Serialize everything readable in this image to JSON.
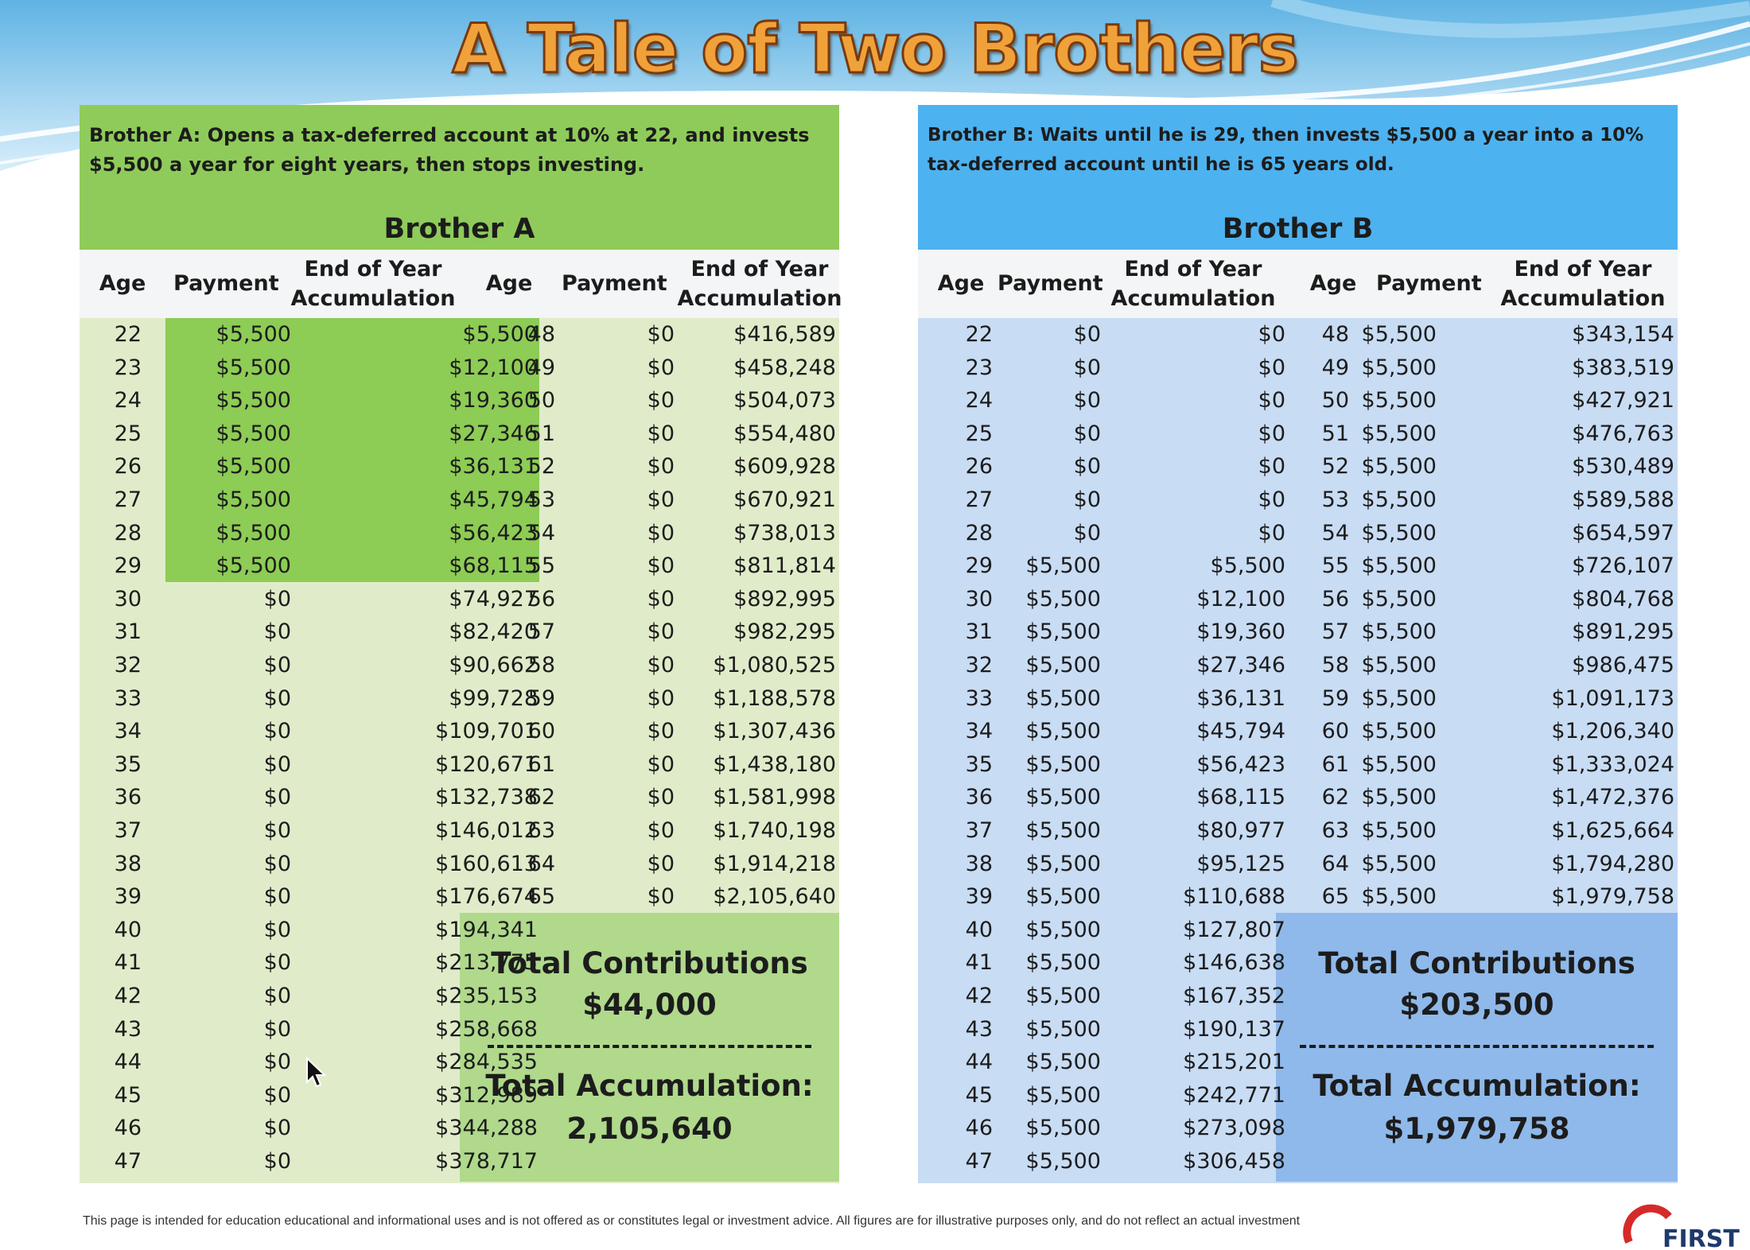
{
  "title": "A Tale of Two Brothers",
  "colors": {
    "green": "#8fcb5a",
    "green_light": "#e0ecc9",
    "blue": "#4db2f0",
    "blue_light": "#c8dcf4",
    "title": "#f0a13a"
  },
  "brother_a": {
    "description": "Brother A: Opens a tax-deferred account at 10% at 22, and invests $5,500 a year for eight years, then stops investing.",
    "title": "Brother A",
    "headers": {
      "age": "Age",
      "payment": "Payment",
      "eoy_line1": "End of Year",
      "eoy_line2": "Accumulation"
    },
    "left_rows": [
      [
        "22",
        "$5,500",
        "$5,500"
      ],
      [
        "23",
        "$5,500",
        "$12,100"
      ],
      [
        "24",
        "$5,500",
        "$19,360"
      ],
      [
        "25",
        "$5,500",
        "$27,346"
      ],
      [
        "26",
        "$5,500",
        "$36,131"
      ],
      [
        "27",
        "$5,500",
        "$45,794"
      ],
      [
        "28",
        "$5,500",
        "$56,423"
      ],
      [
        "29",
        "$5,500",
        "$68,115"
      ],
      [
        "30",
        "$0",
        "$74,927"
      ],
      [
        "31",
        "$0",
        "$82,420"
      ],
      [
        "32",
        "$0",
        "$90,662"
      ],
      [
        "33",
        "$0",
        "$99,728"
      ],
      [
        "34",
        "$0",
        "$109,701"
      ],
      [
        "35",
        "$0",
        "$120,671"
      ],
      [
        "36",
        "$0",
        "$132,738"
      ],
      [
        "37",
        "$0",
        "$146,012"
      ],
      [
        "38",
        "$0",
        "$160,613"
      ],
      [
        "39",
        "$0",
        "$176,674"
      ],
      [
        "40",
        "$0",
        "$194,341"
      ],
      [
        "41",
        "$0",
        "$213,775"
      ],
      [
        "42",
        "$0",
        "$235,153"
      ],
      [
        "43",
        "$0",
        "$258,668"
      ],
      [
        "44",
        "$0",
        "$284,535"
      ],
      [
        "45",
        "$0",
        "$312,989"
      ],
      [
        "46",
        "$0",
        "$344,288"
      ],
      [
        "47",
        "$0",
        "$378,717"
      ]
    ],
    "right_rows": [
      [
        "48",
        "$0",
        "$416,589"
      ],
      [
        "49",
        "$0",
        "$458,248"
      ],
      [
        "50",
        "$0",
        "$504,073"
      ],
      [
        "51",
        "$0",
        "$554,480"
      ],
      [
        "52",
        "$0",
        "$609,928"
      ],
      [
        "53",
        "$0",
        "$670,921"
      ],
      [
        "54",
        "$0",
        "$738,013"
      ],
      [
        "55",
        "$0",
        "$811,814"
      ],
      [
        "56",
        "$0",
        "$892,995"
      ],
      [
        "57",
        "$0",
        "$982,295"
      ],
      [
        "58",
        "$0",
        "$1,080,525"
      ],
      [
        "59",
        "$0",
        "$1,188,578"
      ],
      [
        "60",
        "$0",
        "$1,307,436"
      ],
      [
        "61",
        "$0",
        "$1,438,180"
      ],
      [
        "62",
        "$0",
        "$1,581,998"
      ],
      [
        "63",
        "$0",
        "$1,740,198"
      ],
      [
        "64",
        "$0",
        "$1,914,218"
      ],
      [
        "65",
        "$0",
        "$2,105,640"
      ]
    ],
    "totals": {
      "contrib_label": "Total Contributions",
      "contrib_value": "$44,000",
      "accum_label": "Total Accumulation:",
      "accum_value": "2,105,640"
    }
  },
  "brother_b": {
    "description": "Brother B: Waits until he is 29, then invests $5,500 a year into a 10% tax-deferred account until he is 65 years old.",
    "title": "Brother B",
    "headers": {
      "age": "Age",
      "payment": "Payment",
      "eoy_line1": "End of Year",
      "eoy_line2": "Accumulation"
    },
    "left_rows": [
      [
        "22",
        "$0",
        "$0"
      ],
      [
        "23",
        "$0",
        "$0"
      ],
      [
        "24",
        "$0",
        "$0"
      ],
      [
        "25",
        "$0",
        "$0"
      ],
      [
        "26",
        "$0",
        "$0"
      ],
      [
        "27",
        "$0",
        "$0"
      ],
      [
        "28",
        "$0",
        "$0"
      ],
      [
        "29",
        "$5,500",
        "$5,500"
      ],
      [
        "30",
        "$5,500",
        "$12,100"
      ],
      [
        "31",
        "$5,500",
        "$19,360"
      ],
      [
        "32",
        "$5,500",
        "$27,346"
      ],
      [
        "33",
        "$5,500",
        "$36,131"
      ],
      [
        "34",
        "$5,500",
        "$45,794"
      ],
      [
        "35",
        "$5,500",
        "$56,423"
      ],
      [
        "36",
        "$5,500",
        "$68,115"
      ],
      [
        "37",
        "$5,500",
        "$80,977"
      ],
      [
        "38",
        "$5,500",
        "$95,125"
      ],
      [
        "39",
        "$5,500",
        "$110,688"
      ],
      [
        "40",
        "$5,500",
        "$127,807"
      ],
      [
        "41",
        "$5,500",
        "$146,638"
      ],
      [
        "42",
        "$5,500",
        "$167,352"
      ],
      [
        "43",
        "$5,500",
        "$190,137"
      ],
      [
        "44",
        "$5,500",
        "$215,201"
      ],
      [
        "45",
        "$5,500",
        "$242,771"
      ],
      [
        "46",
        "$5,500",
        "$273,098"
      ],
      [
        "47",
        "$5,500",
        "$306,458"
      ]
    ],
    "right_rows": [
      [
        "48",
        "$5,500",
        "$343,154"
      ],
      [
        "49",
        "$5,500",
        "$383,519"
      ],
      [
        "50",
        "$5,500",
        "$427,921"
      ],
      [
        "51",
        "$5,500",
        "$476,763"
      ],
      [
        "52",
        "$5,500",
        "$530,489"
      ],
      [
        "53",
        "$5,500",
        "$589,588"
      ],
      [
        "54",
        "$5,500",
        "$654,597"
      ],
      [
        "55",
        "$5,500",
        "$726,107"
      ],
      [
        "56",
        "$5,500",
        "$804,768"
      ],
      [
        "57",
        "$5,500",
        "$891,295"
      ],
      [
        "58",
        "$5,500",
        "$986,475"
      ],
      [
        "59",
        "$5,500",
        "$1,091,173"
      ],
      [
        "60",
        "$5,500",
        "$1,206,340"
      ],
      [
        "61",
        "$5,500",
        "$1,333,024"
      ],
      [
        "62",
        "$5,500",
        "$1,472,376"
      ],
      [
        "63",
        "$5,500",
        "$1,625,664"
      ],
      [
        "64",
        "$5,500",
        "$1,794,280"
      ],
      [
        "65",
        "$5,500",
        "$1,979,758"
      ]
    ],
    "totals": {
      "contrib_label": "Total Contributions",
      "contrib_value": "$203,500",
      "accum_label": "Total Accumulation:",
      "accum_value": "$1,979,758"
    }
  },
  "footer": "This page is intended for education educational and informational uses and is not offered as or constitutes legal or investment advice. All figures are for illustrative purposes only, and do not reflect an actual investment",
  "logo_text": "FIRST"
}
